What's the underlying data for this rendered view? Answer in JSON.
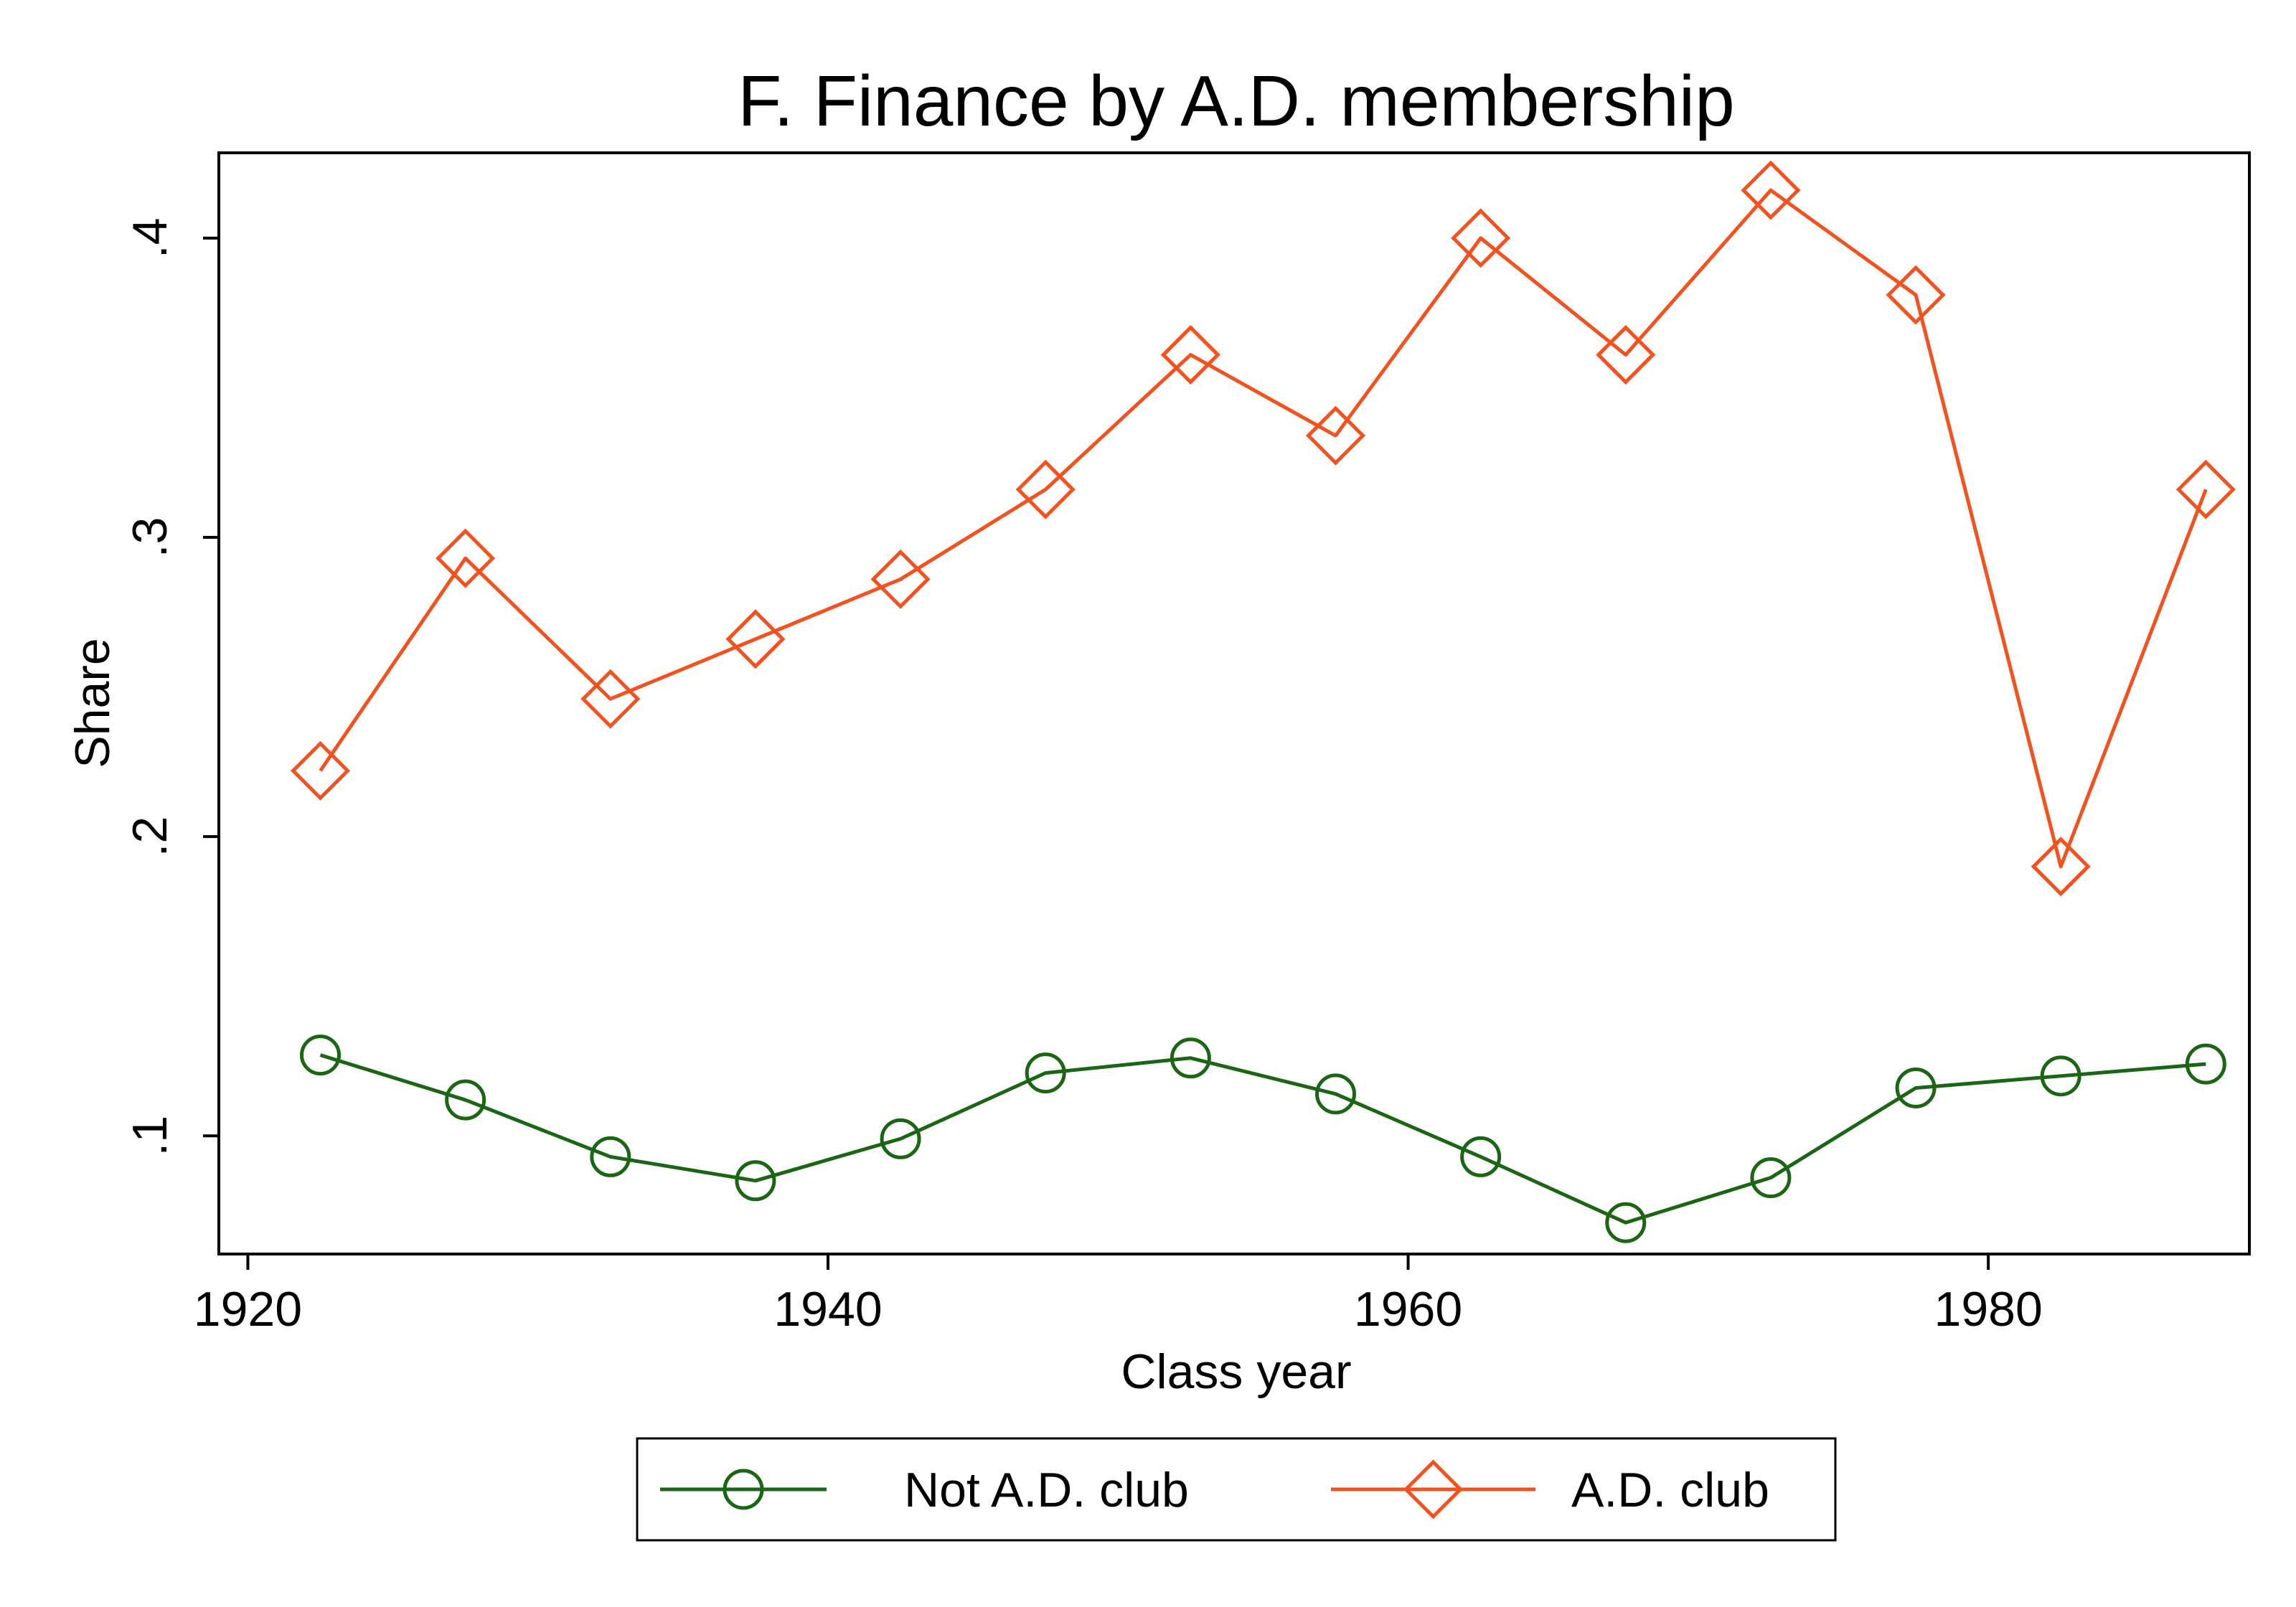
{
  "chart_data": {
    "type": "line",
    "title": "F. Finance by A.D. membership",
    "xlabel": "Class year",
    "ylabel": "Share",
    "xlim": [
      1919,
      1989
    ],
    "ylim": [
      0.0605,
      0.4285
    ],
    "xticks": [
      1920,
      1940,
      1960,
      1980
    ],
    "xtick_labels": [
      "1920",
      "1940",
      "1960",
      "1980"
    ],
    "yticks": [
      0.1,
      0.2,
      0.3,
      0.4
    ],
    "ytick_labels": [
      ".1",
      ".2",
      ".3",
      ".4"
    ],
    "grid": false,
    "legend_position": "bottom",
    "series": [
      {
        "name": "Not A.D. club",
        "color": "#1a6614",
        "marker": "circle",
        "x": [
          1922.5,
          1927.5,
          1932.5,
          1937.5,
          1942.5,
          1947.5,
          1952.5,
          1957.5,
          1962.5,
          1967.5,
          1972.5,
          1977.5,
          1982.5,
          1987.5
        ],
        "values": [
          0.127,
          0.112,
          0.093,
          0.085,
          0.099,
          0.121,
          0.126,
          0.114,
          0.093,
          0.071,
          0.086,
          0.116,
          0.12,
          0.124
        ]
      },
      {
        "name": "A.D. club",
        "color": "#f4511e",
        "marker": "diamond",
        "x": [
          1922.5,
          1927.5,
          1932.5,
          1937.5,
          1942.5,
          1947.5,
          1952.5,
          1957.5,
          1962.5,
          1967.5,
          1972.5,
          1977.5,
          1982.5,
          1987.5
        ],
        "values": [
          0.222,
          0.293,
          0.246,
          0.266,
          0.286,
          0.316,
          0.361,
          0.334,
          0.4,
          0.361,
          0.416,
          0.381,
          0.19,
          0.316
        ]
      }
    ]
  }
}
